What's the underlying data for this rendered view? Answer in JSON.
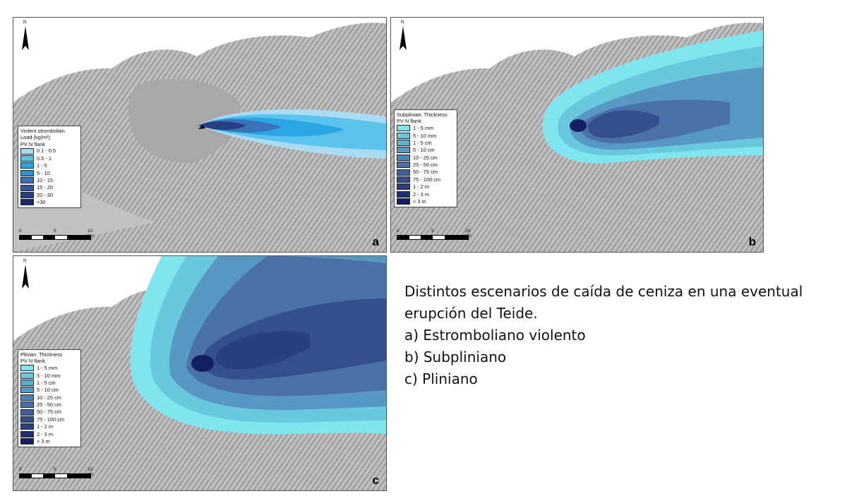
{
  "north_label": "N",
  "scale": {
    "ticks": [
      "0",
      "5",
      "10 km"
    ]
  },
  "panels": {
    "a": {
      "label": "a",
      "legend_title": [
        "Violent strombolian",
        "Load (kg/m²)",
        "PV  N flank"
      ],
      "classes": [
        {
          "label": "0.1 - 0.5",
          "color": "#a9dcf2"
        },
        {
          "label": "0.5 - 1",
          "color": "#5cc2ee"
        },
        {
          "label": "1 - 5",
          "color": "#2aa7e2"
        },
        {
          "label": "5 - 10",
          "color": "#2f8fd0"
        },
        {
          "label": "10 - 15",
          "color": "#3a72b8"
        },
        {
          "label": "15 - 20",
          "color": "#34589f"
        },
        {
          "label": "20 - 30",
          "color": "#283f86"
        },
        {
          "label": ">30",
          "color": "#172a6d"
        }
      ]
    },
    "b": {
      "label": "b",
      "legend_title": [
        "Subplinian.  Thickness",
        "PV  N flank"
      ],
      "classes": [
        {
          "label": "1 - 5 mm",
          "color": "#7fe6f0"
        },
        {
          "label": "5 - 10 mm",
          "color": "#6ac8de"
        },
        {
          "label": "1 - 5 cm",
          "color": "#5fb0d0"
        },
        {
          "label": "5 - 10 cm",
          "color": "#5899c4"
        },
        {
          "label": "10 - 25 cm",
          "color": "#5083b6"
        },
        {
          "label": "25 - 50 cm",
          "color": "#4a71a8"
        },
        {
          "label": "50 - 75 cm",
          "color": "#40609c"
        },
        {
          "label": "75 - 100 cm",
          "color": "#354f8e"
        },
        {
          "label": "1 - 2 m",
          "color": "#2a3f80"
        },
        {
          "label": "2 - 3 m",
          "color": "#1f2f72"
        },
        {
          "label": "> 3 m",
          "color": "#131f62"
        }
      ]
    },
    "c": {
      "label": "c",
      "legend_title": [
        "Plinian.  Thickness",
        "PV  N flank"
      ],
      "classes": [
        {
          "label": "1 - 5 mm",
          "color": "#7fe6f0"
        },
        {
          "label": "5 - 10 mm",
          "color": "#6ac8de"
        },
        {
          "label": "1 - 5 cm",
          "color": "#5fb0d0"
        },
        {
          "label": "5 - 10 cm",
          "color": "#5899c4"
        },
        {
          "label": "10 - 25 cm",
          "color": "#5083b6"
        },
        {
          "label": "25 - 50 cm",
          "color": "#4a71a8"
        },
        {
          "label": "50 - 75 cm",
          "color": "#40609c"
        },
        {
          "label": "75 - 100 cm",
          "color": "#354f8e"
        },
        {
          "label": "1 - 2 m",
          "color": "#2a3f80"
        },
        {
          "label": "2 - 3 m",
          "color": "#1f2f72"
        },
        {
          "label": "> 3 m",
          "color": "#131f62"
        }
      ]
    }
  },
  "caption": {
    "lines": [
      "Distintos escenarios de caída de ceniza en una eventual",
      "erupción del Teide.",
      "a) Estromboliano violento",
      "b) Subpliniano",
      "c) Pliniano"
    ]
  }
}
